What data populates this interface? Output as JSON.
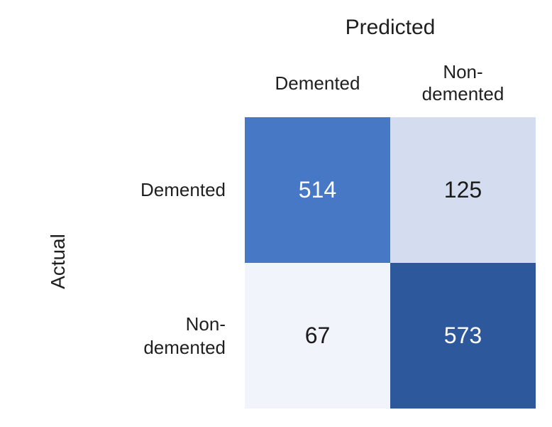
{
  "chart_data": {
    "type": "heatmap",
    "subtype": "confusion-matrix",
    "title": "",
    "x_axis_label": "Predicted",
    "y_axis_label": "Actual",
    "col_labels": [
      "Demented",
      "Non-\ndemented"
    ],
    "row_labels": [
      "Demented",
      "Non-\ndemented"
    ],
    "matrix": [
      [
        514,
        125
      ],
      [
        67,
        573
      ]
    ],
    "cell_colors": [
      [
        "#4778C5",
        "#D3DDEF"
      ],
      [
        "#F2F4FB",
        "#2E589C"
      ]
    ],
    "cell_text_colors": [
      [
        "#FFFFFF",
        "#1B1B1B"
      ],
      [
        "#1B1B1B",
        "#FFFFFF"
      ]
    ],
    "label_color": "#1F1F1F",
    "background": "#FFFFFF",
    "legend": "none",
    "grid": "off"
  }
}
